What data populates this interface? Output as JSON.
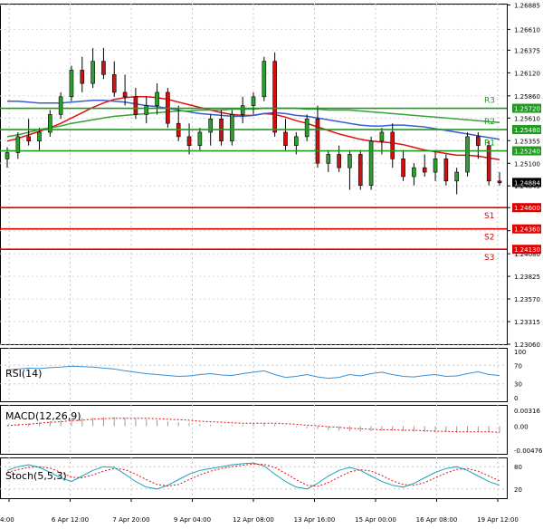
{
  "chart_data": {
    "type": "candlestick",
    "timeframe_labels": [
      "4:00",
      "6 Apr 12:00",
      "7 Apr 20:00",
      "9 Apr 04:00",
      "12 Apr 08:00",
      "13 Apr 16:00",
      "15 Apr 00:00",
      "16 Apr 08:00",
      "19 Apr 12:00"
    ],
    "price_axis": {
      "ylim": [
        1.2306,
        1.269
      ],
      "ticks": [
        "1.26885",
        "1.26610",
        "1.26375",
        "1.26120",
        "1.25860",
        "1.25610",
        "1.25355",
        "1.25100",
        "1.24845",
        "1.24600",
        "1.24340",
        "1.24080",
        "1.23825",
        "1.23570",
        "1.23315",
        "1.23060"
      ],
      "tick_values": [
        1.26885,
        1.2661,
        1.26375,
        1.2612,
        1.2586,
        1.2561,
        1.25355,
        1.251,
        1.24845,
        1.246,
        1.2434,
        1.2408,
        1.23825,
        1.2357,
        1.23315,
        1.2306
      ]
    },
    "current_price": {
      "label": "1.24884",
      "value": 1.24884
    },
    "levels": [
      {
        "name": "R3",
        "label": "1.25720",
        "value": 1.2572,
        "color": "#1f9a1f"
      },
      {
        "name": "R2",
        "label": "1.25480",
        "value": 1.2548,
        "color": "#1f9a1f"
      },
      {
        "name": "R1",
        "label": "1.25240",
        "value": 1.2524,
        "color": "#1f9a1f"
      },
      {
        "name": "S1",
        "label": "1.24600",
        "value": 1.246,
        "color": "#e00000"
      },
      {
        "name": "S2",
        "label": "1.24360",
        "value": 1.2436,
        "color": "#e00000"
      },
      {
        "name": "S3",
        "label": "1.24130",
        "value": 1.2413,
        "color": "#e00000"
      }
    ],
    "candles": [
      [
        1.2515,
        1.2528,
        1.2505,
        1.2522
      ],
      [
        1.2522,
        1.2545,
        1.2515,
        1.254
      ],
      [
        1.254,
        1.256,
        1.253,
        1.2535
      ],
      [
        1.2535,
        1.255,
        1.2525,
        1.2545
      ],
      [
        1.2545,
        1.257,
        1.254,
        1.2565
      ],
      [
        1.2565,
        1.259,
        1.256,
        1.2585
      ],
      [
        1.2585,
        1.262,
        1.258,
        1.2615
      ],
      [
        1.2615,
        1.263,
        1.259,
        1.26
      ],
      [
        1.26,
        1.264,
        1.2595,
        1.2625
      ],
      [
        1.2625,
        1.264,
        1.2605,
        1.261
      ],
      [
        1.261,
        1.2625,
        1.2585,
        1.259
      ],
      [
        1.259,
        1.261,
        1.2575,
        1.2585
      ],
      [
        1.2585,
        1.2595,
        1.256,
        1.2565
      ],
      [
        1.2565,
        1.2585,
        1.2555,
        1.2575
      ],
      [
        1.2575,
        1.26,
        1.2565,
        1.259
      ],
      [
        1.259,
        1.2595,
        1.255,
        1.2555
      ],
      [
        1.2555,
        1.2575,
        1.2535,
        1.254
      ],
      [
        1.254,
        1.2555,
        1.252,
        1.253
      ],
      [
        1.253,
        1.255,
        1.2525,
        1.2545
      ],
      [
        1.2545,
        1.2565,
        1.253,
        1.256
      ],
      [
        1.256,
        1.257,
        1.253,
        1.2535
      ],
      [
        1.2535,
        1.257,
        1.253,
        1.2565
      ],
      [
        1.2565,
        1.2585,
        1.2555,
        1.2575
      ],
      [
        1.2575,
        1.259,
        1.2565,
        1.2585
      ],
      [
        1.2585,
        1.263,
        1.258,
        1.2625
      ],
      [
        1.2625,
        1.2635,
        1.254,
        1.2545
      ],
      [
        1.2545,
        1.256,
        1.2525,
        1.253
      ],
      [
        1.253,
        1.2545,
        1.252,
        1.254
      ],
      [
        1.254,
        1.2565,
        1.2535,
        1.256
      ],
      [
        1.256,
        1.2575,
        1.2505,
        1.251
      ],
      [
        1.251,
        1.2525,
        1.25,
        1.252
      ],
      [
        1.252,
        1.253,
        1.25,
        1.2505
      ],
      [
        1.2505,
        1.2525,
        1.248,
        1.252
      ],
      [
        1.252,
        1.2525,
        1.248,
        1.2485
      ],
      [
        1.2485,
        1.254,
        1.248,
        1.2535
      ],
      [
        1.2535,
        1.255,
        1.252,
        1.2545
      ],
      [
        1.2545,
        1.2555,
        1.2505,
        1.2515
      ],
      [
        1.2515,
        1.2525,
        1.249,
        1.2495
      ],
      [
        1.2495,
        1.251,
        1.2485,
        1.2505
      ],
      [
        1.2505,
        1.252,
        1.2495,
        1.25
      ],
      [
        1.25,
        1.2525,
        1.249,
        1.2515
      ],
      [
        1.2515,
        1.252,
        1.2485,
        1.249
      ],
      [
        1.249,
        1.2505,
        1.2475,
        1.25
      ],
      [
        1.25,
        1.2545,
        1.2495,
        1.254
      ],
      [
        1.254,
        1.2545,
        1.2515,
        1.253
      ],
      [
        1.253,
        1.2535,
        1.2485,
        1.249
      ],
      [
        1.249,
        1.25,
        1.2485,
        1.2488
      ]
    ],
    "moving_averages": [
      {
        "name": "red",
        "color": "#e01010",
        "values": [
          1.2535,
          1.2538,
          1.2542,
          1.2546,
          1.255,
          1.2555,
          1.2561,
          1.2567,
          1.2573,
          1.2578,
          1.2582,
          1.2584,
          1.2585,
          1.2585,
          1.2584,
          1.2582,
          1.2579,
          1.2576,
          1.2573,
          1.257,
          1.2567,
          1.2565,
          1.2564,
          1.2564,
          1.2566,
          1.2565,
          1.2562,
          1.2558,
          1.2555,
          1.2551,
          1.2547,
          1.2543,
          1.254,
          1.2537,
          1.2535,
          1.2534,
          1.2533,
          1.2531,
          1.2528,
          1.2525,
          1.2523,
          1.2521,
          1.2519,
          1.2519,
          1.2518,
          1.2516,
          1.2514
        ]
      },
      {
        "name": "blue",
        "color": "#3a5bd6",
        "values": [
          1.258,
          1.258,
          1.2579,
          1.2578,
          1.2578,
          1.2578,
          1.2579,
          1.258,
          1.2581,
          1.2581,
          1.258,
          1.2579,
          1.2577,
          1.2575,
          1.2574,
          1.2572,
          1.257,
          1.2568,
          1.2566,
          1.2565,
          1.2564,
          1.2563,
          1.2563,
          1.2564,
          1.2566,
          1.2567,
          1.2566,
          1.2564,
          1.2563,
          1.2561,
          1.2559,
          1.2557,
          1.2555,
          1.2553,
          1.2552,
          1.2552,
          1.2553,
          1.2553,
          1.2552,
          1.2551,
          1.2549,
          1.2547,
          1.2545,
          1.2543,
          1.2541,
          1.2539,
          1.2537
        ]
      },
      {
        "name": "green",
        "color": "#3aa03a",
        "values": [
          1.254,
          1.2542,
          1.2545,
          1.2548,
          1.255,
          1.2552,
          1.2555,
          1.2557,
          1.2559,
          1.2561,
          1.2563,
          1.2564,
          1.2565,
          1.2566,
          1.2567,
          1.2568,
          1.2569,
          1.2569,
          1.257,
          1.257,
          1.257,
          1.2571,
          1.2571,
          1.2571,
          1.2572,
          1.2572,
          1.2572,
          1.2572,
          1.2571,
          1.2571,
          1.257,
          1.257,
          1.257,
          1.2569,
          1.2568,
          1.2567,
          1.2566,
          1.2565,
          1.2564,
          1.2563,
          1.2562,
          1.2561,
          1.256,
          1.2559,
          1.2558,
          1.2557,
          1.2556
        ]
      }
    ],
    "rsi": {
      "label": "RSI(14)",
      "ticks": [
        "100",
        "70",
        "30",
        "0"
      ],
      "tick_values": [
        100,
        70,
        30,
        0
      ],
      "values": [
        60,
        62,
        64,
        63,
        65,
        66,
        68,
        67,
        66,
        64,
        62,
        58,
        55,
        52,
        50,
        48,
        46,
        47,
        50,
        52,
        49,
        48,
        52,
        55,
        58,
        50,
        44,
        46,
        50,
        45,
        42,
        44,
        50,
        47,
        52,
        55,
        50,
        46,
        45,
        48,
        50,
        46,
        47,
        52,
        56,
        50,
        48
      ]
    },
    "macd": {
      "label": "MACD(12,26,9)",
      "ticks": [
        "0.00316",
        "0.00",
        "-0.004763"
      ],
      "tick_values": [
        0.00316,
        0.0,
        -0.004763
      ],
      "histogram": [
        0.0002,
        0.0004,
        0.0006,
        0.0008,
        0.001,
        0.0012,
        0.0014,
        0.0016,
        0.0017,
        0.0018,
        0.0018,
        0.0017,
        0.0016,
        0.0014,
        0.0012,
        0.001,
        0.0008,
        0.0006,
        0.0004,
        0.0003,
        0.0002,
        0.0002,
        0.0003,
        0.0005,
        0.0007,
        0.0004,
        0.0001,
        -0.0002,
        -0.0004,
        -0.0006,
        -0.0008,
        -0.0009,
        -0.001,
        -0.0011,
        -0.001,
        -0.0009,
        -0.0009,
        -0.001,
        -0.0011,
        -0.0012,
        -0.0012,
        -0.0012,
        -0.0013,
        -0.0012,
        -0.0011,
        -0.0012,
        -0.0013
      ],
      "signal": [
        0.0001,
        0.0003,
        0.0004,
        0.0006,
        0.0008,
        0.0009,
        0.0011,
        0.0012,
        0.0014,
        0.0015,
        0.0016,
        0.0016,
        0.0016,
        0.0016,
        0.0015,
        0.0014,
        0.0013,
        0.0012,
        0.001,
        0.0009,
        0.0008,
        0.0007,
        0.0006,
        0.0006,
        0.0006,
        0.0006,
        0.0005,
        0.0004,
        0.0002,
        0.0001,
        -0.0001,
        -0.0002,
        -0.0004,
        -0.0005,
        -0.0006,
        -0.0007,
        -0.0007,
        -0.0008,
        -0.0008,
        -0.0009,
        -0.001,
        -0.001,
        -0.0011,
        -0.0011,
        -0.0011,
        -0.0011,
        -0.0012
      ]
    },
    "stoch": {
      "label": "Stoch(5,5,3)",
      "ticks": [
        "80",
        "20"
      ],
      "tick_values": [
        80,
        20
      ],
      "k": [
        70,
        80,
        85,
        78,
        65,
        50,
        40,
        55,
        70,
        80,
        78,
        60,
        40,
        25,
        20,
        30,
        45,
        60,
        70,
        75,
        80,
        85,
        88,
        90,
        82,
        60,
        40,
        25,
        20,
        35,
        55,
        70,
        78,
        70,
        55,
        40,
        30,
        25,
        35,
        50,
        65,
        75,
        80,
        70,
        55,
        40,
        30
      ],
      "d": [
        65,
        72,
        78,
        80,
        76,
        65,
        52,
        50,
        58,
        68,
        75,
        72,
        60,
        45,
        32,
        28,
        32,
        45,
        58,
        68,
        75,
        80,
        84,
        87,
        86,
        78,
        62,
        45,
        30,
        27,
        37,
        52,
        66,
        72,
        68,
        56,
        42,
        32,
        30,
        37,
        50,
        63,
        73,
        75,
        68,
        55,
        42
      ]
    }
  }
}
